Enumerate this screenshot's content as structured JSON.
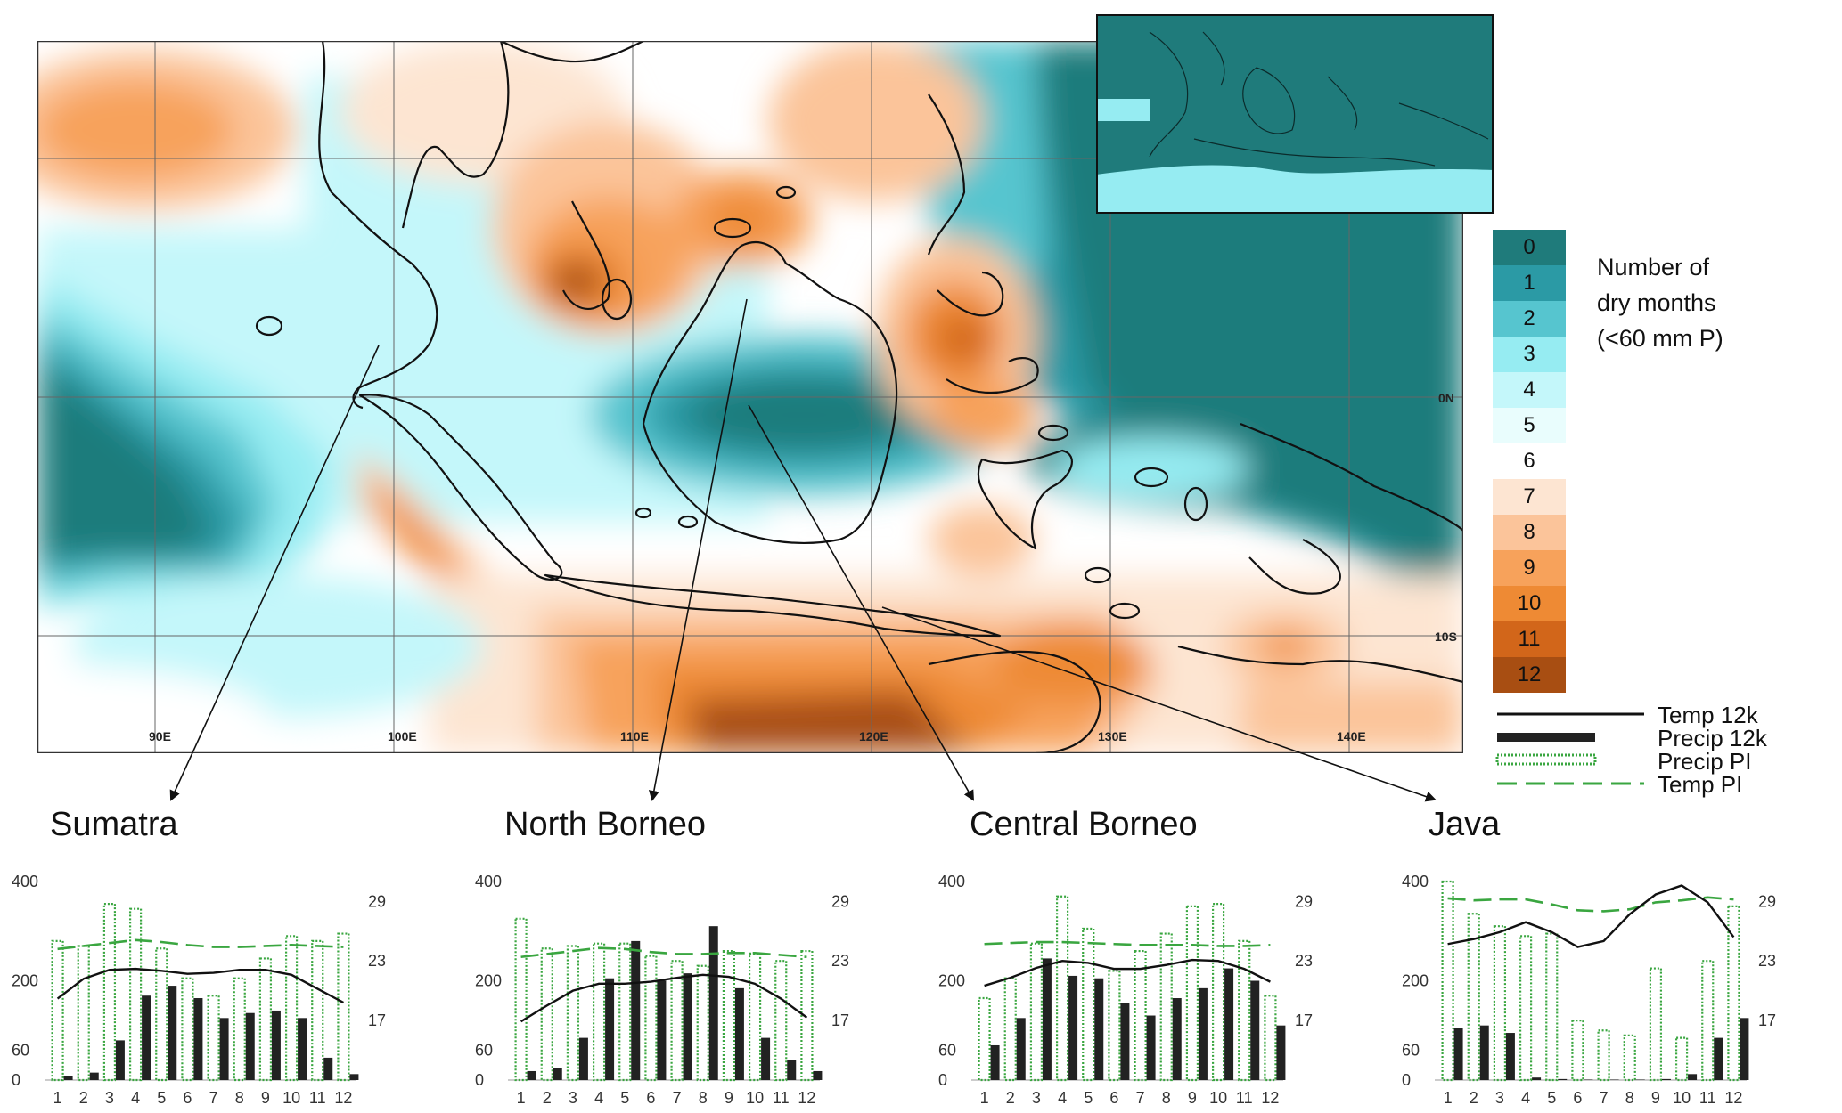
{
  "legend": {
    "title_lines": [
      "Number of",
      "dry months",
      "(<60 mm P)"
    ],
    "items": [
      {
        "label": "0",
        "color": "#1f7b7b"
      },
      {
        "label": "1",
        "color": "#2b9aa5"
      },
      {
        "label": "2",
        "color": "#56c5cf"
      },
      {
        "label": "3",
        "color": "#96ecf2"
      },
      {
        "label": "4",
        "color": "#c4f7fa"
      },
      {
        "label": "5",
        "color": "#e9fdfd"
      },
      {
        "label": "6",
        "color": "#ffffff"
      },
      {
        "label": "7",
        "color": "#fde5d2"
      },
      {
        "label": "8",
        "color": "#fbc49a"
      },
      {
        "label": "9",
        "color": "#f7a25b"
      },
      {
        "label": "10",
        "color": "#ee8a34"
      },
      {
        "label": "11",
        "color": "#d2661a"
      },
      {
        "label": "12",
        "color": "#a84e12"
      }
    ]
  },
  "map": {
    "lon_labels": [
      "90E",
      "100E",
      "110E",
      "120E",
      "130E",
      "140E"
    ],
    "lat_labels": [
      "0N",
      "10S"
    ]
  },
  "series_legend": [
    {
      "label": "Temp 12k",
      "style": "solid-thin",
      "color": "#111111"
    },
    {
      "label": "Precip 12k",
      "style": "solid-thick",
      "color": "#222222"
    },
    {
      "label": "Precip PI",
      "style": "dotted",
      "color": "#3aa640"
    },
    {
      "label": "Temp PI",
      "style": "dashed",
      "color": "#3aa640"
    }
  ],
  "regions": [
    "Sumatra",
    "North Borneo",
    "Central Borneo",
    "Java"
  ],
  "chart_data": [
    {
      "type": "bar",
      "title": "Sumatra",
      "categories": [
        "1",
        "2",
        "3",
        "4",
        "5",
        "6",
        "7",
        "8",
        "9",
        "10",
        "11",
        "12"
      ],
      "y_left_ticks": [
        0,
        60,
        200,
        400
      ],
      "y_right_ticks": [
        17,
        23,
        29
      ],
      "ylim_left": [
        0,
        400
      ],
      "ylim_right": [
        11,
        31
      ],
      "series": [
        {
          "name": "Precip 12k",
          "values": [
            8,
            15,
            80,
            170,
            190,
            165,
            125,
            135,
            140,
            125,
            45,
            12
          ]
        },
        {
          "name": "Precip PI",
          "values": [
            280,
            270,
            355,
            345,
            265,
            205,
            170,
            205,
            245,
            290,
            280,
            295
          ]
        },
        {
          "name": "Temp 12k",
          "values": [
            19.2,
            21.2,
            22.1,
            22.2,
            22.0,
            21.7,
            21.8,
            22.1,
            22.1,
            21.6,
            20.2,
            18.8
          ]
        },
        {
          "name": "Temp PI",
          "values": [
            24.2,
            24.5,
            24.8,
            25.1,
            24.9,
            24.6,
            24.4,
            24.4,
            24.5,
            24.6,
            24.5,
            24.4
          ]
        }
      ]
    },
    {
      "type": "bar",
      "title": "North Borneo",
      "categories": [
        "1",
        "2",
        "3",
        "4",
        "5",
        "6",
        "7",
        "8",
        "9",
        "10",
        "11",
        "12"
      ],
      "y_left_ticks": [
        0,
        60,
        200,
        400
      ],
      "y_right_ticks": [
        17,
        23,
        29
      ],
      "ylim_left": [
        0,
        400
      ],
      "ylim_right": [
        11,
        31
      ],
      "series": [
        {
          "name": "Precip 12k",
          "values": [
            18,
            25,
            85,
            205,
            280,
            200,
            215,
            310,
            185,
            85,
            40,
            18
          ]
        },
        {
          "name": "Precip PI",
          "values": [
            325,
            265,
            270,
            275,
            275,
            250,
            240,
            230,
            260,
            255,
            240,
            260
          ]
        },
        {
          "name": "Temp 12k",
          "values": [
            16.9,
            18.5,
            20.0,
            20.7,
            20.7,
            20.9,
            21.3,
            21.6,
            21.4,
            20.7,
            19.2,
            17.3
          ]
        },
        {
          "name": "Temp PI",
          "values": [
            23.4,
            23.7,
            24.0,
            24.3,
            24.2,
            23.9,
            23.7,
            23.7,
            23.8,
            23.8,
            23.6,
            23.4
          ]
        }
      ]
    },
    {
      "type": "bar",
      "title": "Central Borneo",
      "categories": [
        "1",
        "2",
        "3",
        "4",
        "5",
        "6",
        "7",
        "8",
        "9",
        "10",
        "11",
        "12"
      ],
      "y_left_ticks": [
        0,
        60,
        200,
        400
      ],
      "y_right_ticks": [
        17,
        23,
        29
      ],
      "ylim_left": [
        0,
        400
      ],
      "ylim_right": [
        11,
        31
      ],
      "series": [
        {
          "name": "Precip 12k",
          "values": [
            70,
            125,
            245,
            210,
            205,
            155,
            130,
            165,
            185,
            225,
            200,
            110
          ]
        },
        {
          "name": "Precip PI",
          "values": [
            165,
            205,
            275,
            370,
            305,
            220,
            260,
            295,
            350,
            355,
            280,
            170
          ]
        },
        {
          "name": "Temp 12k",
          "values": [
            20.5,
            21.3,
            22.3,
            23.0,
            22.8,
            22.2,
            22.2,
            22.6,
            23.1,
            23.0,
            22.2,
            20.9
          ]
        },
        {
          "name": "Temp PI",
          "values": [
            24.7,
            24.8,
            24.9,
            24.9,
            24.8,
            24.7,
            24.6,
            24.6,
            24.6,
            24.5,
            24.5,
            24.6
          ]
        }
      ]
    },
    {
      "type": "bar",
      "title": "Java",
      "categories": [
        "1",
        "2",
        "3",
        "4",
        "5",
        "6",
        "7",
        "8",
        "9",
        "10",
        "11",
        "12"
      ],
      "y_left_ticks": [
        0,
        60,
        200,
        400
      ],
      "y_right_ticks": [
        17,
        23,
        29
      ],
      "ylim_left": [
        0,
        400
      ],
      "ylim_right": [
        11,
        31
      ],
      "series": [
        {
          "name": "Precip 12k",
          "values": [
            105,
            110,
            95,
            5,
            2,
            1,
            1,
            1,
            2,
            12,
            85,
            125
          ]
        },
        {
          "name": "Precip PI",
          "values": [
            400,
            335,
            310,
            290,
            295,
            120,
            100,
            90,
            225,
            85,
            240,
            350
          ]
        },
        {
          "name": "Temp 12k",
          "values": [
            24.7,
            25.2,
            25.9,
            26.9,
            25.9,
            24.4,
            25.0,
            27.7,
            29.7,
            30.6,
            28.9,
            25.4
          ]
        },
        {
          "name": "Temp PI",
          "values": [
            29.3,
            29.1,
            29.2,
            29.2,
            28.7,
            28.1,
            28.0,
            28.2,
            28.9,
            29.1,
            29.4,
            29.2
          ]
        }
      ]
    }
  ]
}
